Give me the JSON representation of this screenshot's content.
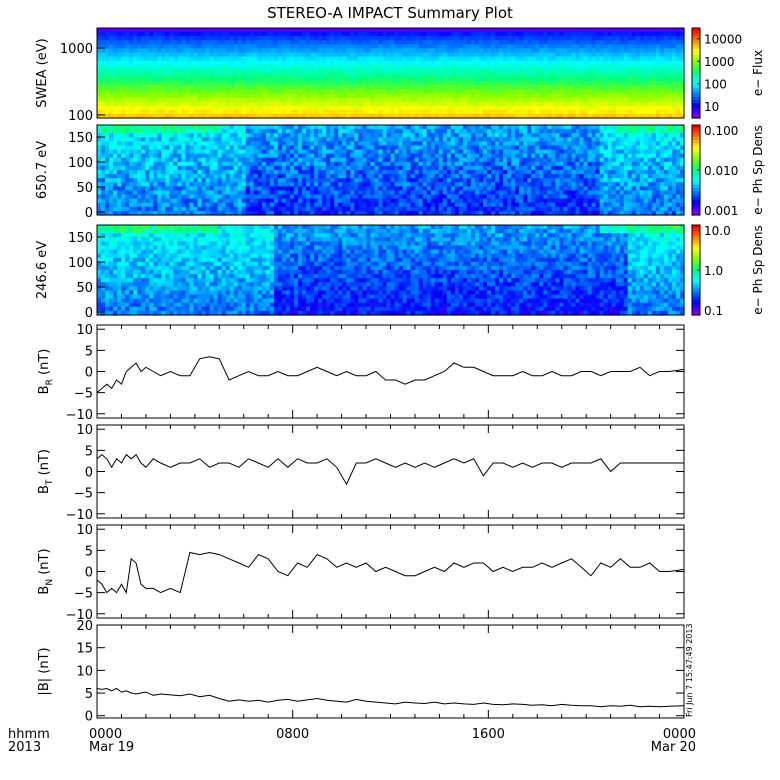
{
  "title": "STEREO-A IMPACT Summary Plot",
  "footer": {
    "left_label_1": "hhmm",
    "left_label_2": "2013",
    "timestamp": "Fri Jun  7 15:47:49 2013"
  },
  "colors": {
    "background": "#ffffff",
    "ink": "#000000",
    "spectrogram_scale": [
      "#7f00ff",
      "#0000ff",
      "#0080ff",
      "#00ffff",
      "#00ff80",
      "#80ff00",
      "#ffff00",
      "#ff8000",
      "#ff0000"
    ]
  },
  "chart_data": [
    {
      "type": "heatmap",
      "ylabel": "SWEA (eV)",
      "yscale": "log",
      "ylim": [
        90,
        2000
      ],
      "yticks": [
        "100",
        "1000"
      ],
      "colorbar_label": "e− Flux",
      "colorbar_ticks": [
        "10",
        "100",
        "1000",
        "10000"
      ],
      "colorbar_scale": "log",
      "colorbar_range": [
        3,
        30000
      ],
      "description_values": {
        "energies_eV": [
          100,
          200,
          400,
          700,
          1000,
          1500,
          2000
        ],
        "typical_flux": [
          20000,
          4000,
          800,
          150,
          40,
          12,
          4
        ]
      }
    },
    {
      "type": "heatmap",
      "ylabel": "650.7 eV",
      "ylim": [
        0,
        180
      ],
      "yticks": [
        "0",
        "50",
        "100",
        "150"
      ],
      "colorbar_label": "e− Ph Sp Dens",
      "colorbar_ticks": [
        "0.001",
        "0.010",
        "0.100"
      ],
      "colorbar_scale": "log",
      "colorbar_range": [
        0.001,
        0.1
      ]
    },
    {
      "type": "heatmap",
      "ylabel": "246.6 eV",
      "ylim": [
        0,
        180
      ],
      "yticks": [
        "0",
        "50",
        "100",
        "150"
      ],
      "colorbar_label": "e− Ph Sp Dens",
      "colorbar_ticks": [
        "0.1",
        "1.0",
        "10.0"
      ],
      "colorbar_scale": "log",
      "colorbar_range": [
        0.1,
        10
      ]
    },
    {
      "type": "line",
      "ylabel": "B",
      "ylabel_sub": "R",
      "ylabel_unit": "(nT)",
      "ylim": [
        -11,
        11
      ],
      "yticks": [
        "10",
        "5",
        "0",
        "−5",
        "−10"
      ],
      "ytick_values": [
        10,
        5,
        0,
        -5,
        -10
      ],
      "x_hours": [
        0,
        0.2,
        0.4,
        0.6,
        0.8,
        1.0,
        1.2,
        1.4,
        1.6,
        1.8,
        2.0,
        2.3,
        2.6,
        3.0,
        3.4,
        3.8,
        4.2,
        4.6,
        5.0,
        5.4,
        5.8,
        6.2,
        6.6,
        7.0,
        7.4,
        7.8,
        8.2,
        8.6,
        9.0,
        9.4,
        9.8,
        10.2,
        10.6,
        11.0,
        11.4,
        11.8,
        12.2,
        12.6,
        13.0,
        13.4,
        13.8,
        14.2,
        14.6,
        15.0,
        15.4,
        15.8,
        16.2,
        16.6,
        17.0,
        17.4,
        17.8,
        18.2,
        18.6,
        19.0,
        19.4,
        19.8,
        20.2,
        20.6,
        21.0,
        21.4,
        21.8,
        22.2,
        22.6,
        23.0,
        23.4,
        24.0
      ],
      "values": [
        -5,
        -4,
        -3,
        -4,
        -2,
        -3,
        0,
        1,
        2,
        0,
        1,
        0,
        -1,
        0,
        -1,
        -1,
        3,
        3.5,
        3,
        -2,
        -1,
        0,
        -1,
        -1,
        0,
        -1,
        -1,
        0,
        1,
        0,
        -1,
        0,
        -1,
        -1,
        0,
        -2,
        -2,
        -3,
        -2,
        -2,
        -1,
        0,
        2,
        1,
        1,
        0,
        -1,
        -1,
        -1,
        0,
        -1,
        -1,
        0,
        -1,
        -1,
        0,
        0,
        -1,
        0,
        0,
        0,
        1,
        -1,
        0,
        0,
        0.5
      ]
    },
    {
      "type": "line",
      "ylabel": "B",
      "ylabel_sub": "T",
      "ylabel_unit": "(nT)",
      "ylim": [
        -11,
        11
      ],
      "yticks": [
        "10",
        "5",
        "0",
        "−5",
        "−10"
      ],
      "ytick_values": [
        10,
        5,
        0,
        -5,
        -10
      ],
      "x_hours": [
        0,
        0.2,
        0.4,
        0.6,
        0.8,
        1.0,
        1.2,
        1.4,
        1.6,
        1.8,
        2.0,
        2.3,
        2.6,
        3.0,
        3.4,
        3.8,
        4.2,
        4.6,
        5.0,
        5.4,
        5.8,
        6.2,
        6.6,
        7.0,
        7.4,
        7.8,
        8.2,
        8.6,
        9.0,
        9.4,
        9.8,
        10.2,
        10.6,
        11.0,
        11.4,
        11.8,
        12.2,
        12.6,
        13.0,
        13.4,
        13.8,
        14.2,
        14.6,
        15.0,
        15.4,
        15.8,
        16.2,
        16.6,
        17.0,
        17.4,
        17.8,
        18.2,
        18.6,
        19.0,
        19.4,
        19.8,
        20.2,
        20.6,
        21.0,
        21.4,
        21.8,
        22.2,
        22.6,
        23.0,
        23.4,
        24.0
      ],
      "values": [
        3,
        4,
        3,
        1,
        3,
        2,
        4,
        3,
        4,
        2,
        1,
        3,
        2,
        1,
        2,
        2,
        3,
        1,
        2,
        2,
        1,
        3,
        2,
        1,
        3,
        1,
        3,
        2,
        2,
        3,
        1,
        -3,
        2,
        2,
        3,
        2,
        1,
        2,
        1,
        2,
        1,
        2,
        3,
        2,
        3,
        -1,
        2,
        2,
        1,
        2,
        1,
        2,
        2,
        1,
        2,
        2,
        2,
        3,
        0,
        2,
        2,
        2,
        2,
        2,
        2,
        2
      ]
    },
    {
      "type": "line",
      "ylabel": "B",
      "ylabel_sub": "N",
      "ylabel_unit": "(nT)",
      "ylim": [
        -11,
        11
      ],
      "yticks": [
        "10",
        "5",
        "0",
        "−5",
        "−10"
      ],
      "ytick_values": [
        10,
        5,
        0,
        -5,
        -10
      ],
      "x_hours": [
        0,
        0.2,
        0.4,
        0.6,
        0.8,
        1.0,
        1.2,
        1.4,
        1.6,
        1.8,
        2.0,
        2.3,
        2.6,
        3.0,
        3.4,
        3.8,
        4.2,
        4.6,
        5.0,
        5.4,
        5.8,
        6.2,
        6.6,
        7.0,
        7.4,
        7.8,
        8.2,
        8.6,
        9.0,
        9.4,
        9.8,
        10.2,
        10.6,
        11.0,
        11.4,
        11.8,
        12.2,
        12.6,
        13.0,
        13.4,
        13.8,
        14.2,
        14.6,
        15.0,
        15.4,
        15.8,
        16.2,
        16.6,
        17.0,
        17.4,
        17.8,
        18.2,
        18.6,
        19.0,
        19.4,
        19.8,
        20.2,
        20.6,
        21.0,
        21.4,
        21.8,
        22.2,
        22.6,
        23.0,
        23.4,
        24.0
      ],
      "values": [
        -2,
        -3,
        -5,
        -4,
        -5,
        -3,
        -5,
        3,
        2,
        -3,
        -4,
        -4,
        -5,
        -4,
        -5,
        4.5,
        4,
        4.5,
        4,
        3,
        2,
        1,
        4,
        3,
        0,
        -1,
        2,
        1,
        4,
        3,
        1,
        2,
        1,
        2,
        0,
        1,
        0,
        -1,
        -1,
        0,
        1,
        0,
        2,
        1,
        2,
        2,
        0,
        1,
        0,
        1,
        1,
        2,
        1,
        2,
        3,
        1,
        -1,
        2,
        1,
        3,
        1,
        1,
        2,
        0,
        0,
        0.5
      ]
    },
    {
      "type": "line",
      "ylabel": "|B| (nT)",
      "ylim": [
        -0.5,
        20
      ],
      "yticks": [
        "20",
        "15",
        "10",
        "5",
        "0"
      ],
      "ytick_values": [
        20,
        15,
        10,
        5,
        0
      ],
      "x_hours": [
        0,
        0.2,
        0.4,
        0.6,
        0.8,
        1.0,
        1.2,
        1.4,
        1.6,
        1.8,
        2.0,
        2.3,
        2.6,
        3.0,
        3.4,
        3.8,
        4.2,
        4.6,
        5.0,
        5.4,
        5.8,
        6.2,
        6.6,
        7.0,
        7.4,
        7.8,
        8.2,
        8.6,
        9.0,
        9.4,
        9.8,
        10.2,
        10.6,
        11.0,
        11.4,
        11.8,
        12.2,
        12.6,
        13.0,
        13.4,
        13.8,
        14.2,
        14.6,
        15.0,
        15.4,
        15.8,
        16.2,
        16.6,
        17.0,
        17.4,
        17.8,
        18.2,
        18.6,
        19.0,
        19.4,
        19.8,
        20.2,
        20.6,
        21.0,
        21.4,
        21.8,
        22.2,
        22.6,
        23.0,
        23.4,
        24.0
      ],
      "values": [
        6,
        5.8,
        6,
        5.5,
        6,
        5.2,
        5.5,
        5,
        4.8,
        5,
        5.2,
        4.5,
        4.8,
        4.6,
        4.4,
        4.8,
        4.2,
        4.5,
        3.8,
        3.2,
        3.5,
        3.2,
        3.4,
        3.0,
        3.4,
        3.6,
        3.2,
        3.5,
        3.8,
        3.4,
        3.2,
        3.0,
        3.6,
        3.2,
        3.0,
        2.8,
        2.6,
        3.0,
        2.8,
        2.7,
        3.0,
        2.6,
        2.8,
        2.6,
        2.5,
        2.8,
        2.5,
        2.4,
        2.6,
        2.5,
        2.3,
        2.4,
        2.2,
        2.5,
        2.3,
        2.2,
        2.2,
        2.0,
        2.2,
        2.1,
        2.3,
        2.0,
        2.1,
        2.0,
        2.1,
        2.2
      ]
    }
  ],
  "xaxis": {
    "tick_labels": [
      "0000",
      "0800",
      "1600",
      "0000"
    ],
    "tick_hours": [
      0,
      8,
      16,
      24
    ],
    "date_labels": [
      "Mar 19",
      "Mar 20"
    ],
    "range_hours": [
      0,
      24
    ]
  }
}
